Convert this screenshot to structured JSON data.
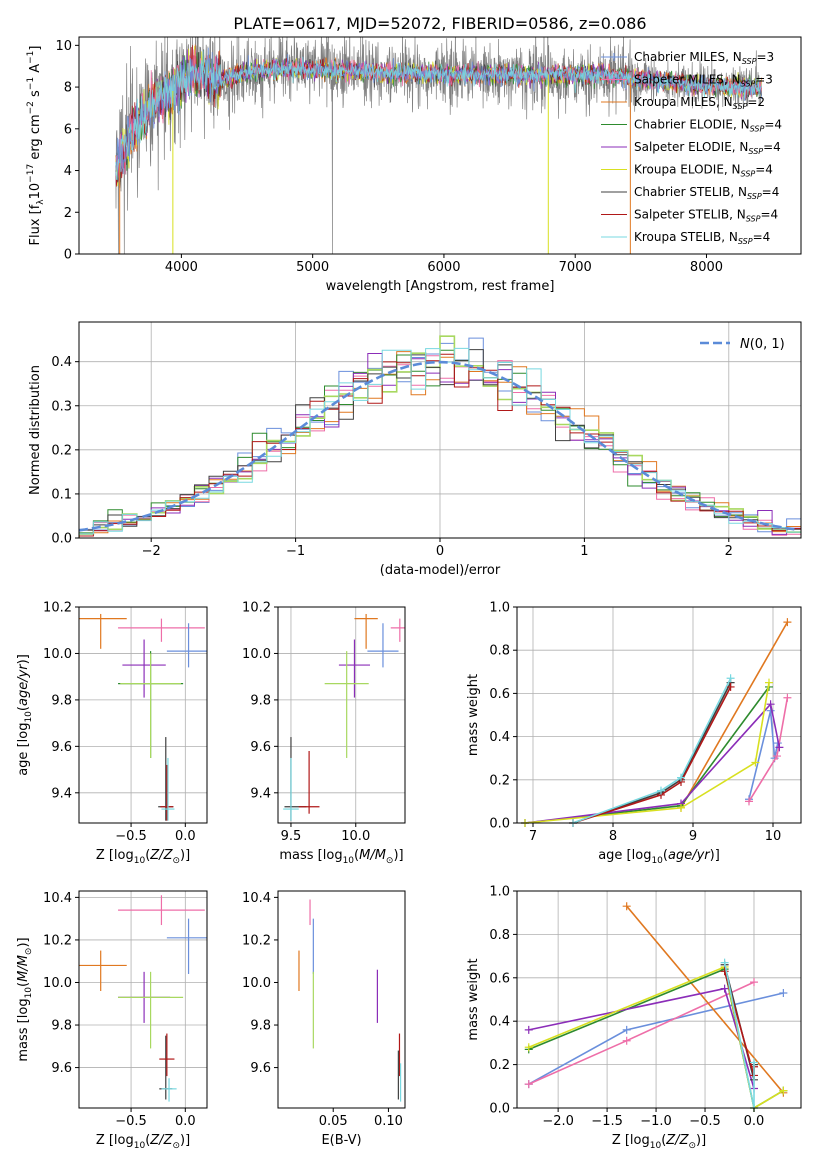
{
  "figure": {
    "title": "PLATE=0617, MJD=52072, FIBERID=0586, z=0.086",
    "palette": {
      "chabrier_miles": "#6a8fdc",
      "salpeter_miles": "#ee6ea8",
      "kroupa_miles": "#e07820",
      "chabrier_elodie": "#2e8b2e",
      "salpeter_elodie": "#8b2db8",
      "kroupa_elodie": "#d8e020",
      "chabrier_stelib": "#404040",
      "salpeter_stelib": "#b01818",
      "kroupa_stelib": "#78d8e0",
      "data": "#808080",
      "gaussian": "#5b8bd8",
      "green_light": "#a8d860"
    }
  },
  "chart_data": [
    {
      "id": "spectrum",
      "type": "line",
      "title": "PLATE=0617, MJD=52072, FIBERID=0586, z=0.086",
      "xlabel": "wavelength [Angstrom, rest frame]",
      "ylabel": "Flux [f_λ 10^-17 erg cm^-2 s^-1 A^-1]",
      "xlim": [
        3220,
        8720
      ],
      "ylim": [
        0,
        10.4
      ],
      "xticks": [
        4000,
        5000,
        6000,
        7000,
        8000
      ],
      "yticks": [
        0,
        2,
        4,
        6,
        8,
        10
      ],
      "grid": false,
      "legend_position": "right",
      "legend": [
        {
          "label": "Chabrier MILES, N",
          "sub": "SSP",
          "suffix": "=3",
          "color_key": "chabrier_miles",
          "marker": true
        },
        {
          "label": "Salpeter MILES, N",
          "sub": "SSP",
          "suffix": "=3",
          "color_key": "salpeter_miles",
          "marker": true
        },
        {
          "label": "Kroupa MILES, N",
          "sub": "SSP",
          "suffix": "=2",
          "color_key": "kroupa_miles",
          "marker": false
        },
        {
          "label": "Chabrier ELODIE, N",
          "sub": "SSP",
          "suffix": "=4",
          "color_key": "chabrier_elodie",
          "marker": false
        },
        {
          "label": "Salpeter ELODIE, N",
          "sub": "SSP",
          "suffix": "=4",
          "color_key": "salpeter_elodie",
          "marker": false
        },
        {
          "label": "Kroupa ELODIE, N",
          "sub": "SSP",
          "suffix": "=4",
          "color_key": "kroupa_elodie",
          "marker": false
        },
        {
          "label": "Chabrier STELIB, N",
          "sub": "SSP",
          "suffix": "=4",
          "color_key": "chabrier_stelib",
          "marker": false
        },
        {
          "label": "Salpeter STELIB, N",
          "sub": "SSP",
          "suffix": "=4",
          "color_key": "salpeter_stelib",
          "marker": false
        },
        {
          "label": "Kroupa STELIB, N",
          "sub": "SSP",
          "suffix": "=4",
          "color_key": "kroupa_stelib",
          "marker": false
        }
      ],
      "continuum": {
        "wavelength": [
          3520,
          3600,
          3700,
          3800,
          3900,
          4000,
          4100,
          4300,
          4500,
          4800,
          5200,
          5600,
          6000,
          6400,
          6800,
          7200,
          7600,
          8000,
          8400
        ],
        "flux": [
          4.2,
          5.5,
          6.6,
          7.4,
          7.6,
          8.2,
          8.8,
          8.3,
          8.7,
          8.9,
          8.8,
          8.7,
          8.6,
          8.6,
          8.6,
          8.6,
          8.3,
          8.1,
          7.9
        ]
      },
      "data_noise_sigma": 0.85,
      "data_dropouts": [
        {
          "wavelength": 3520,
          "flux": 0.0
        },
        {
          "wavelength": 5150,
          "flux": 0.0
        },
        {
          "wavelength": 3565,
          "flux": 0.0
        }
      ],
      "model_dropouts": [
        {
          "wavelength": 3935,
          "flux": 0.0,
          "color_key": "kroupa_elodie"
        },
        {
          "wavelength": 6795,
          "flux": 0.0,
          "color_key": "kroupa_elodie"
        },
        {
          "wavelength": 7420,
          "flux": 0.0,
          "color_key": "kroupa_miles"
        },
        {
          "wavelength": 3530,
          "flux": 0.0,
          "color_key": "kroupa_miles"
        }
      ]
    },
    {
      "id": "residuals",
      "type": "step",
      "xlabel": "(data-model)/error",
      "ylabel": "Normed distribution",
      "xlim": [
        -2.5,
        2.5
      ],
      "ylim": [
        0,
        0.49
      ],
      "xticks": [
        -2,
        -1,
        0,
        1,
        2
      ],
      "yticks": [
        0.0,
        0.1,
        0.2,
        0.3,
        0.4
      ],
      "grid": true,
      "bin_width": 0.1,
      "legend": [
        {
          "label": "N(0,1)",
          "style": "dashed",
          "color_key": "gaussian"
        }
      ]
    },
    {
      "id": "age_vs_Z",
      "type": "errorbar",
      "xlabel": "Z [log10(Z/Z⊙)]",
      "ylabel": "age [log10(age/yr)]",
      "xlim": [
        -0.98,
        0.2
      ],
      "ylim": [
        9.27,
        10.2
      ],
      "xticks": [
        -0.5,
        0.0
      ],
      "yticks": [
        9.4,
        9.6,
        9.8,
        10.0,
        10.2
      ],
      "grid": true,
      "points": [
        {
          "x": -0.78,
          "y": 10.15,
          "xerr": [
            0.24,
            0.24
          ],
          "yerr": [
            0.13,
            0.02
          ],
          "color_key": "kroupa_miles"
        },
        {
          "x": -0.22,
          "y": 10.11,
          "xerr": [
            0.4,
            0.4
          ],
          "yerr": [
            0.06,
            0.04
          ],
          "color_key": "salpeter_miles"
        },
        {
          "x": 0.03,
          "y": 10.01,
          "xerr": [
            0.2,
            0.2
          ],
          "yerr": [
            0.07,
            0.12
          ],
          "color_key": "chabrier_miles"
        },
        {
          "x": -0.38,
          "y": 9.95,
          "xerr": [
            0.2,
            0.2
          ],
          "yerr": [
            0.14,
            0.11
          ],
          "color_key": "salpeter_elodie"
        },
        {
          "x": -0.32,
          "y": 9.87,
          "xerr": [
            0.3,
            0.3
          ],
          "yerr": [
            0.32,
            0.14
          ],
          "color_key": "chabrier_elodie"
        },
        {
          "x": -0.32,
          "y": 9.87,
          "xerr": [
            0.28,
            0.28
          ],
          "yerr": [
            0.32,
            0.13
          ],
          "color_key": "green_light"
        },
        {
          "x": -0.18,
          "y": 9.34,
          "xerr": [
            0.07,
            0.07
          ],
          "yerr": [
            0.06,
            0.3
          ],
          "color_key": "chabrier_stelib"
        },
        {
          "x": -0.17,
          "y": 9.34,
          "xerr": [
            0.06,
            0.06
          ],
          "yerr": [
            0.06,
            0.18
          ],
          "color_key": "salpeter_stelib"
        },
        {
          "x": -0.16,
          "y": 9.33,
          "xerr": [
            0.06,
            0.06
          ],
          "yerr": [
            0.05,
            0.22
          ],
          "color_key": "kroupa_stelib"
        }
      ]
    },
    {
      "id": "age_vs_mass",
      "type": "errorbar",
      "xlabel": "mass [log10(M/M⊙)]",
      "ylabel": "",
      "xlim": [
        9.4,
        10.38
      ],
      "ylim": [
        9.27,
        10.2
      ],
      "xticks": [
        9.5,
        10.0
      ],
      "yticks": [
        9.4,
        9.6,
        9.8,
        10.0,
        10.2
      ],
      "grid": true,
      "points": [
        {
          "x": 10.08,
          "y": 10.15,
          "xerr": [
            0.09,
            0.09
          ],
          "yerr": [
            0.13,
            0.02
          ],
          "color_key": "kroupa_miles"
        },
        {
          "x": 10.34,
          "y": 10.11,
          "xerr": [
            0.07,
            0.07
          ],
          "yerr": [
            0.06,
            0.04
          ],
          "color_key": "salpeter_miles"
        },
        {
          "x": 10.21,
          "y": 10.01,
          "xerr": [
            0.12,
            0.12
          ],
          "yerr": [
            0.07,
            0.12
          ],
          "color_key": "chabrier_miles"
        },
        {
          "x": 9.99,
          "y": 9.95,
          "xerr": [
            0.12,
            0.12
          ],
          "yerr": [
            0.14,
            0.11
          ],
          "color_key": "salpeter_elodie"
        },
        {
          "x": 9.93,
          "y": 9.87,
          "xerr": [
            0.17,
            0.17
          ],
          "yerr": [
            0.32,
            0.14
          ],
          "color_key": "green_light"
        },
        {
          "x": 9.5,
          "y": 9.34,
          "xerr": [
            0.05,
            0.12
          ],
          "yerr": [
            0.06,
            0.3
          ],
          "color_key": "chabrier_stelib"
        },
        {
          "x": 9.64,
          "y": 9.34,
          "xerr": [
            0.08,
            0.08
          ],
          "yerr": [
            0.03,
            0.24
          ],
          "color_key": "salpeter_stelib"
        },
        {
          "x": 9.5,
          "y": 9.33,
          "xerr": [
            0.06,
            0.06
          ],
          "yerr": [
            0.05,
            0.22
          ],
          "color_key": "kroupa_stelib"
        }
      ]
    },
    {
      "id": "weight_vs_age",
      "type": "line",
      "xlabel": "age [log10(age/yr)]",
      "ylabel": "mass weight",
      "xlim": [
        6.8,
        10.35
      ],
      "ylim": [
        0,
        1.0
      ],
      "xticks": [
        7,
        8,
        9,
        10
      ],
      "yticks": [
        0.0,
        0.2,
        0.4,
        0.6,
        0.8,
        1.0
      ],
      "grid": true,
      "series": [
        {
          "color_key": "chabrier_miles",
          "x": [
            9.7,
            9.97,
            10.02,
            10.06
          ],
          "y": [
            0.11,
            0.52,
            0.3,
            0.37
          ]
        },
        {
          "color_key": "salpeter_miles",
          "x": [
            9.7,
            10.05,
            10.18
          ],
          "y": [
            0.1,
            0.31,
            0.58
          ]
        },
        {
          "color_key": "kroupa_miles",
          "x": [
            8.85,
            10.18
          ],
          "y": [
            0.07,
            0.93
          ]
        },
        {
          "color_key": "chabrier_elodie",
          "x": [
            6.9,
            8.85,
            9.95
          ],
          "y": [
            0.0,
            0.08,
            0.63
          ]
        },
        {
          "color_key": "salpeter_elodie",
          "x": [
            6.9,
            8.85,
            9.97,
            10.08
          ],
          "y": [
            0.0,
            0.09,
            0.55,
            0.35
          ]
        },
        {
          "color_key": "kroupa_elodie",
          "x": [
            6.9,
            8.85,
            9.78,
            9.95
          ],
          "y": [
            0.0,
            0.07,
            0.28,
            0.65
          ]
        },
        {
          "color_key": "chabrier_stelib",
          "x": [
            7.5,
            8.6,
            8.85,
            9.47
          ],
          "y": [
            0.0,
            0.14,
            0.2,
            0.65
          ]
        },
        {
          "color_key": "salpeter_stelib",
          "x": [
            7.5,
            8.6,
            8.85,
            9.47
          ],
          "y": [
            0.0,
            0.13,
            0.19,
            0.63
          ]
        },
        {
          "color_key": "kroupa_stelib",
          "x": [
            7.5,
            8.6,
            8.85,
            9.47
          ],
          "y": [
            0.0,
            0.15,
            0.21,
            0.67
          ]
        }
      ]
    },
    {
      "id": "mass_vs_Z",
      "type": "errorbar",
      "xlabel": "Z [log10(Z/Z⊙)]",
      "ylabel": "mass [log10(M/M⊙)]",
      "xlim": [
        -0.98,
        0.2
      ],
      "ylim": [
        9.41,
        10.43
      ],
      "xticks": [
        -0.5,
        0.0
      ],
      "yticks": [
        9.6,
        9.8,
        10.0,
        10.2,
        10.4
      ],
      "grid": true,
      "points": [
        {
          "x": -0.78,
          "y": 10.08,
          "xerr": [
            0.24,
            0.24
          ],
          "yerr": [
            0.12,
            0.07
          ],
          "color_key": "kroupa_miles"
        },
        {
          "x": -0.22,
          "y": 10.34,
          "xerr": [
            0.4,
            0.4
          ],
          "yerr": [
            0.07,
            0.07
          ],
          "color_key": "salpeter_miles"
        },
        {
          "x": 0.03,
          "y": 10.21,
          "xerr": [
            0.2,
            0.2
          ],
          "yerr": [
            0.17,
            0.09
          ],
          "color_key": "chabrier_miles"
        },
        {
          "x": -0.38,
          "y": 9.93,
          "xerr": [
            0.24,
            0.24
          ],
          "yerr": [
            0.12,
            0.12
          ],
          "color_key": "salpeter_elodie"
        },
        {
          "x": -0.32,
          "y": 9.93,
          "xerr": [
            0.3,
            0.3
          ],
          "yerr": [
            0.24,
            0.12
          ],
          "color_key": "green_light"
        },
        {
          "x": -0.18,
          "y": 9.5,
          "xerr": [
            0.06,
            0.06
          ],
          "yerr": [
            0.05,
            0.25
          ],
          "color_key": "chabrier_stelib"
        },
        {
          "x": -0.17,
          "y": 9.64,
          "xerr": [
            0.07,
            0.07
          ],
          "yerr": [
            0.08,
            0.12
          ],
          "color_key": "salpeter_stelib"
        },
        {
          "x": -0.15,
          "y": 9.5,
          "xerr": [
            0.07,
            0.07
          ],
          "yerr": [
            0.06,
            0.05
          ],
          "color_key": "kroupa_stelib"
        }
      ]
    },
    {
      "id": "mass_vs_ebv",
      "type": "errorbar",
      "xlabel": "E(B-V)",
      "ylabel": "",
      "xlim": [
        0.0,
        0.115
      ],
      "ylim": [
        9.41,
        10.43
      ],
      "xticks": [
        0.05,
        0.1
      ],
      "yticks": [
        9.6,
        9.8,
        10.0,
        10.2,
        10.4
      ],
      "grid": false,
      "points": [
        {
          "x": 0.019,
          "y": 10.08,
          "xerr": [
            0,
            0
          ],
          "yerr": [
            0.12,
            0.07
          ],
          "color_key": "kroupa_miles"
        },
        {
          "x": 0.029,
          "y": 10.34,
          "xerr": [
            0,
            0
          ],
          "yerr": [
            0.07,
            0.05
          ],
          "color_key": "salpeter_miles"
        },
        {
          "x": 0.032,
          "y": 10.21,
          "xerr": [
            0,
            0
          ],
          "yerr": [
            0.17,
            0.09
          ],
          "color_key": "chabrier_miles"
        },
        {
          "x": 0.032,
          "y": 9.93,
          "xerr": [
            0,
            0
          ],
          "yerr": [
            0.24,
            0.12
          ],
          "color_key": "green_light"
        },
        {
          "x": 0.09,
          "y": 9.93,
          "xerr": [
            0,
            0
          ],
          "yerr": [
            0.12,
            0.13
          ],
          "color_key": "salpeter_elodie"
        },
        {
          "x": 0.11,
          "y": 9.64,
          "xerr": [
            0,
            0
          ],
          "yerr": [
            0.08,
            0.12
          ],
          "color_key": "salpeter_stelib"
        },
        {
          "x": 0.109,
          "y": 9.5,
          "xerr": [
            0,
            0
          ],
          "yerr": [
            0.05,
            0.18
          ],
          "color_key": "chabrier_stelib"
        },
        {
          "x": 0.111,
          "y": 9.5,
          "xerr": [
            0,
            0
          ],
          "yerr": [
            0.06,
            0.12
          ],
          "color_key": "kroupa_stelib"
        }
      ]
    },
    {
      "id": "weight_vs_Z",
      "type": "line",
      "xlabel": "Z [log10(Z/Z⊙)]",
      "ylabel": "mass weight",
      "xlim": [
        -2.42,
        0.48
      ],
      "ylim": [
        0,
        1.0
      ],
      "xticks": [
        -2.0,
        -1.5,
        -1.0,
        -0.5,
        0.0
      ],
      "yticks": [
        0.0,
        0.2,
        0.4,
        0.6,
        0.8,
        1.0
      ],
      "grid": true,
      "series": [
        {
          "color_key": "chabrier_miles",
          "x": [
            -2.3,
            -1.3,
            0.3
          ],
          "y": [
            0.11,
            0.36,
            0.53
          ]
        },
        {
          "color_key": "salpeter_miles",
          "x": [
            -2.3,
            -1.3,
            0.0
          ],
          "y": [
            0.11,
            0.31,
            0.58
          ]
        },
        {
          "color_key": "kroupa_miles",
          "x": [
            -1.3,
            0.3
          ],
          "y": [
            0.93,
            0.07
          ]
        },
        {
          "color_key": "chabrier_elodie",
          "x": [
            -2.3,
            -0.3,
            0.0,
            0.3
          ],
          "y": [
            0.27,
            0.64,
            0.0,
            0.08
          ]
        },
        {
          "color_key": "salpeter_elodie",
          "x": [
            -2.3,
            -0.3,
            0.0
          ],
          "y": [
            0.36,
            0.55,
            0.09
          ]
        },
        {
          "color_key": "kroupa_elodie",
          "x": [
            -2.3,
            -0.3,
            0.0,
            0.3
          ],
          "y": [
            0.28,
            0.65,
            0.0,
            0.08
          ]
        },
        {
          "color_key": "chabrier_stelib",
          "x": [
            -0.3,
            0.0,
            0.0
          ],
          "y": [
            0.66,
            0.13,
            0.2
          ]
        },
        {
          "color_key": "salpeter_stelib",
          "x": [
            -0.3,
            0.0,
            0.0
          ],
          "y": [
            0.63,
            0.15,
            0.19
          ]
        },
        {
          "color_key": "kroupa_stelib",
          "x": [
            -0.3,
            0.0,
            0.0
          ],
          "y": [
            0.67,
            0.0,
            0.21
          ]
        }
      ]
    }
  ]
}
